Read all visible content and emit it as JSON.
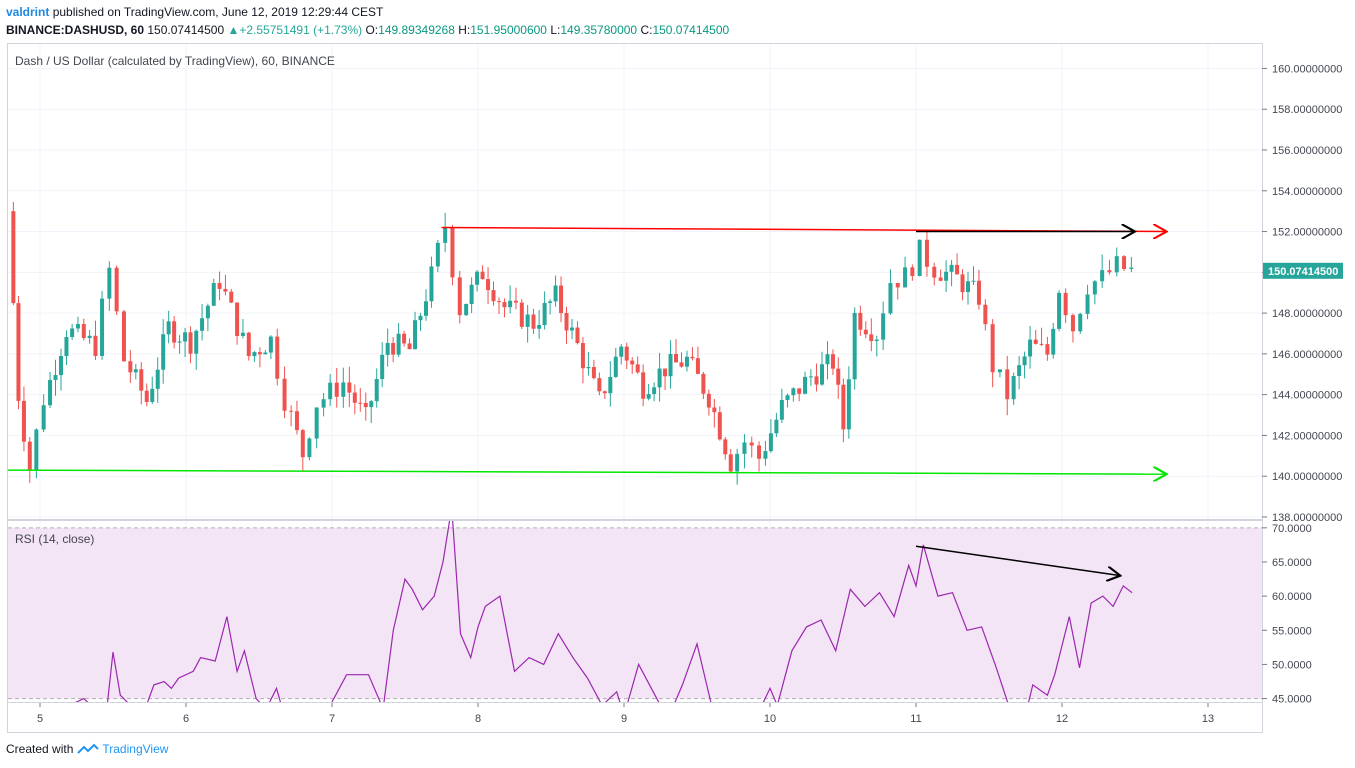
{
  "header": {
    "author": "valdrint",
    "published_text": "published on TradingView.com, June 12, 2019 12:29:44 CEST",
    "symbol": "BINANCE:DASHUSD, 60",
    "last": "150.07414500",
    "change": "+2.55751491 (+1.73%)",
    "o_label": "O:",
    "o_value": "149.89349268",
    "h_label": "H:",
    "h_value": "151.95000600",
    "l_label": "L:",
    "l_value": "149.35780000",
    "c_label": "C:",
    "c_value": "150.07414500"
  },
  "footer": {
    "created_with": "Created with",
    "brand": "TradingView"
  },
  "colors": {
    "up": "#26a69a",
    "down": "#ef5350",
    "rsi_line": "#9c27b0",
    "rsi_bg": "#f3e5f5",
    "resistance": "#ff0000",
    "support": "#00e600",
    "arrow": "#000000"
  },
  "chart_data": [
    {
      "type": "candlestick",
      "title": "Dash / US Dollar (calculated by TradingView), 60, BINANCE",
      "y_axis_ticks": [
        "160.00000000",
        "158.00000000",
        "156.00000000",
        "154.00000000",
        "152.00000000",
        "150.00000000",
        "148.00000000",
        "146.00000000",
        "144.00000000",
        "142.00000000",
        "140.00000000",
        "138.00000000"
      ],
      "x_axis_ticks": [
        "5",
        "6",
        "7",
        "8",
        "9",
        "10",
        "11",
        "12",
        "13"
      ],
      "ylim": [
        137.9,
        161.2
      ],
      "last_price_label": "150.07414500",
      "grid": true,
      "series_approx_closes": [
        {
          "x": 4.8,
          "close": 153.0
        },
        {
          "x": 4.87,
          "close": 144.0
        },
        {
          "x": 4.95,
          "close": 140.4
        },
        {
          "x": 5.05,
          "close": 143.8
        },
        {
          "x": 5.2,
          "close": 147.2
        },
        {
          "x": 5.4,
          "close": 146.4
        },
        {
          "x": 5.5,
          "close": 150.1
        },
        {
          "x": 5.6,
          "close": 145.7
        },
        {
          "x": 5.75,
          "close": 143.7
        },
        {
          "x": 5.9,
          "close": 147.3
        },
        {
          "x": 6.05,
          "close": 146.6
        },
        {
          "x": 6.25,
          "close": 149.6
        },
        {
          "x": 6.45,
          "close": 145.9
        },
        {
          "x": 6.6,
          "close": 146.7
        },
        {
          "x": 6.7,
          "close": 143.8
        },
        {
          "x": 6.82,
          "close": 141.1
        },
        {
          "x": 6.92,
          "close": 143.6
        },
        {
          "x": 7.1,
          "close": 144.6
        },
        {
          "x": 7.25,
          "close": 142.8
        },
        {
          "x": 7.4,
          "close": 146.6
        },
        {
          "x": 7.55,
          "close": 146.2
        },
        {
          "x": 7.7,
          "close": 149.8
        },
        {
          "x": 7.8,
          "close": 152.3
        },
        {
          "x": 7.9,
          "close": 148.2
        },
        {
          "x": 8.05,
          "close": 150.0
        },
        {
          "x": 8.2,
          "close": 148.3
        },
        {
          "x": 8.4,
          "close": 147.5
        },
        {
          "x": 8.55,
          "close": 148.8
        },
        {
          "x": 8.7,
          "close": 146.4
        },
        {
          "x": 8.85,
          "close": 143.7
        },
        {
          "x": 9.0,
          "close": 146.4
        },
        {
          "x": 9.15,
          "close": 144.4
        },
        {
          "x": 9.3,
          "close": 145.3
        },
        {
          "x": 9.45,
          "close": 145.7
        },
        {
          "x": 9.6,
          "close": 143.9
        },
        {
          "x": 9.75,
          "close": 140.7
        },
        {
          "x": 9.85,
          "close": 141.7
        },
        {
          "x": 9.95,
          "close": 140.9
        },
        {
          "x": 10.1,
          "close": 143.4
        },
        {
          "x": 10.3,
          "close": 144.9
        },
        {
          "x": 10.45,
          "close": 145.6
        },
        {
          "x": 10.52,
          "close": 142.4
        },
        {
          "x": 10.6,
          "close": 147.9
        },
        {
          "x": 10.75,
          "close": 147.0
        },
        {
          "x": 10.85,
          "close": 149.6
        },
        {
          "x": 10.95,
          "close": 149.8
        },
        {
          "x": 11.05,
          "close": 151.0
        },
        {
          "x": 11.15,
          "close": 150.2
        },
        {
          "x": 11.3,
          "close": 149.7
        },
        {
          "x": 11.45,
          "close": 148.8
        },
        {
          "x": 11.55,
          "close": 145.4
        },
        {
          "x": 11.65,
          "close": 144.0
        },
        {
          "x": 11.8,
          "close": 146.4
        },
        {
          "x": 11.92,
          "close": 146.0
        },
        {
          "x": 12.0,
          "close": 149.3
        },
        {
          "x": 12.1,
          "close": 147.3
        },
        {
          "x": 12.2,
          "close": 149.4
        },
        {
          "x": 12.3,
          "close": 149.7
        },
        {
          "x": 12.4,
          "close": 150.3
        },
        {
          "x": 12.5,
          "close": 150.07
        }
      ],
      "annotations": [
        {
          "kind": "horizontal-line",
          "color": "red",
          "from": [
            7.75,
            152.2
          ],
          "to": [
            12.58,
            152.0
          ]
        },
        {
          "kind": "horizontal-line",
          "color": "green",
          "from": [
            4.78,
            140.3
          ],
          "to": [
            12.58,
            140.1
          ]
        },
        {
          "kind": "arrow",
          "color": "black",
          "from": [
            11.0,
            152.0
          ],
          "to": [
            12.5,
            152.0
          ]
        }
      ]
    },
    {
      "type": "line",
      "title": "RSI (14, close)",
      "y_axis_ticks": [
        "70.0000",
        "65.0000",
        "60.0000",
        "55.0000",
        "50.0000",
        "45.0000"
      ],
      "x_axis_ticks": [
        "5",
        "6",
        "7",
        "8",
        "9",
        "10",
        "11",
        "12",
        "13"
      ],
      "ylim": [
        44.5,
        71.0
      ],
      "x": [
        4.95,
        5.05,
        5.2,
        5.3,
        5.45,
        5.5,
        5.55,
        5.7,
        5.78,
        5.85,
        5.9,
        5.95,
        6.05,
        6.1,
        6.2,
        6.28,
        6.35,
        6.4,
        6.48,
        6.55,
        6.62,
        6.7,
        6.78,
        6.84,
        6.88,
        7.0,
        7.1,
        7.25,
        7.35,
        7.42,
        7.5,
        7.55,
        7.62,
        7.7,
        7.76,
        7.82,
        7.88,
        7.95,
        8.0,
        8.05,
        8.15,
        8.25,
        8.35,
        8.45,
        8.55,
        8.65,
        8.75,
        8.85,
        8.95,
        9.0,
        9.1,
        9.2,
        9.3,
        9.4,
        9.5,
        9.6,
        9.7,
        9.8,
        9.9,
        10.0,
        10.05,
        10.15,
        10.25,
        10.35,
        10.45,
        10.55,
        10.65,
        10.75,
        10.85,
        10.95,
        11.0,
        11.05,
        11.15,
        11.25,
        11.35,
        11.45,
        11.55,
        11.65,
        11.72,
        11.8,
        11.9,
        11.95,
        12.05,
        12.12,
        12.2,
        12.28,
        12.35,
        12.42,
        12.48
      ],
      "values": [
        43.0,
        42.5,
        44.0,
        45.0,
        42.0,
        51.8,
        45.5,
        42.3,
        47.0,
        47.5,
        46.5,
        48.0,
        49.0,
        51.0,
        50.5,
        57.0,
        49.0,
        52.0,
        45.0,
        43.5,
        46.5,
        40.5,
        42.0,
        41.0,
        42.0,
        44.5,
        48.5,
        48.5,
        43.5,
        55.0,
        62.5,
        61.0,
        58.0,
        60.0,
        65.0,
        73.0,
        54.5,
        51.0,
        55.5,
        58.5,
        60.0,
        49.0,
        51.0,
        50.0,
        54.5,
        51.0,
        48.0,
        44.0,
        46.0,
        42.5,
        50.0,
        46.0,
        42.0,
        47.0,
        53.0,
        44.0,
        40.0,
        44.0,
        42.0,
        46.5,
        44.0,
        52.0,
        55.5,
        56.5,
        52.0,
        61.0,
        58.5,
        60.5,
        57.0,
        64.5,
        61.5,
        67.5,
        60.0,
        60.5,
        55.0,
        55.5,
        49.5,
        43.0,
        40.0,
        47.0,
        45.5,
        48.5,
        57.0,
        49.5,
        59.0,
        60.0,
        58.5,
        61.5,
        60.5
      ],
      "background_band": [
        45,
        70
      ],
      "annotations": [
        {
          "kind": "arrow",
          "color": "black",
          "from": [
            11.0,
            67.3
          ],
          "to": [
            12.4,
            63.0
          ]
        }
      ]
    }
  ]
}
